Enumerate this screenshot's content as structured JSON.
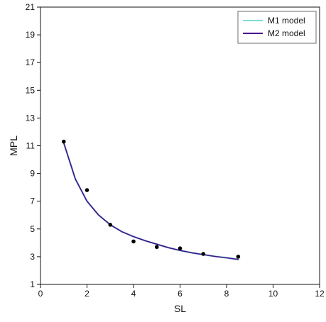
{
  "chart_data": {
    "type": "scatter",
    "title": "",
    "xlabel": "SL",
    "ylabel": "MPL",
    "xlim": [
      0,
      12
    ],
    "ylim": [
      1,
      21
    ],
    "x_ticks": [
      0,
      2,
      4,
      6,
      8,
      10,
      12
    ],
    "y_ticks": [
      1,
      3,
      5,
      7,
      9,
      11,
      13,
      15,
      17,
      19,
      21
    ],
    "grid": false,
    "legend_position": "top-right",
    "points": {
      "color": "#000000",
      "x": [
        1,
        2,
        3,
        4,
        5,
        6,
        7,
        8.5
      ],
      "y": [
        11.3,
        7.8,
        5.3,
        4.1,
        3.7,
        3.6,
        3.2,
        3.0
      ]
    },
    "series": [
      {
        "name": "M1 model",
        "color": "#7fdcd6",
        "x": [
          1,
          1.5,
          2,
          2.5,
          3,
          3.5,
          4,
          4.5,
          5,
          5.5,
          6,
          6.5,
          7,
          7.5,
          8,
          8.5
        ],
        "y": [
          11.2,
          8.6,
          7.0,
          6.0,
          5.3,
          4.8,
          4.45,
          4.15,
          3.9,
          3.65,
          3.45,
          3.28,
          3.15,
          3.02,
          2.92,
          2.8
        ]
      },
      {
        "name": "M2 model",
        "color": "#4b0f8c",
        "x": [
          1,
          1.5,
          2,
          2.5,
          3,
          3.5,
          4,
          4.5,
          5,
          5.5,
          6,
          6.5,
          7,
          7.5,
          8,
          8.5
        ],
        "y": [
          11.2,
          8.6,
          7.0,
          6.0,
          5.3,
          4.8,
          4.45,
          4.15,
          3.9,
          3.65,
          3.45,
          3.28,
          3.15,
          3.02,
          2.92,
          2.8
        ]
      }
    ]
  }
}
